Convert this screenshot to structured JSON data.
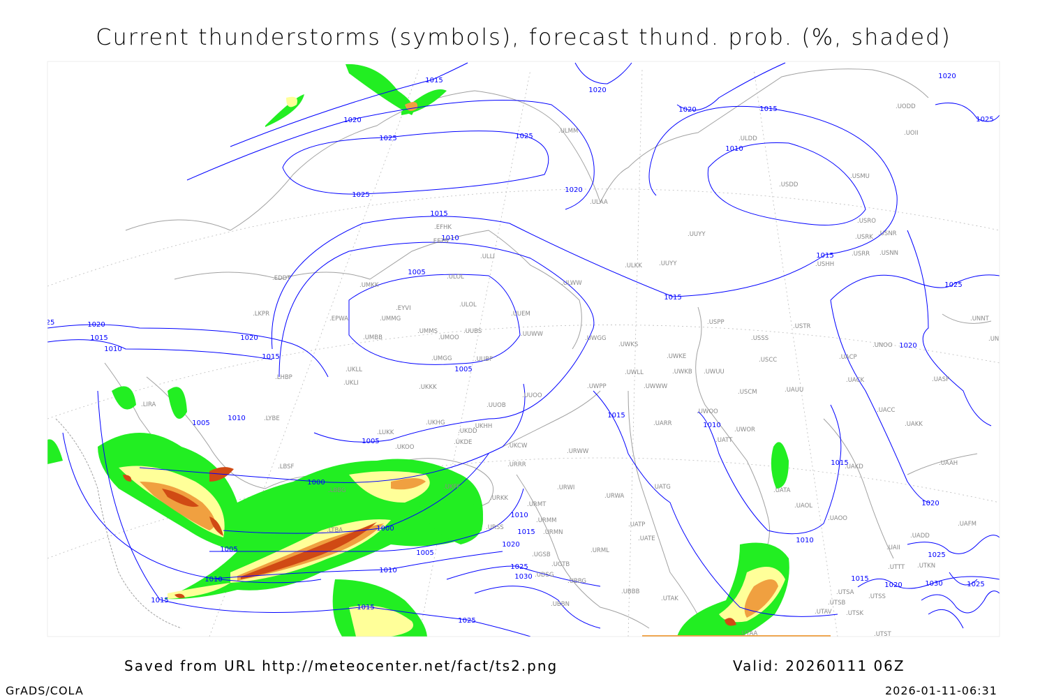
{
  "title": "Current thunderstorms (symbols), forecast thund. prob. (%, shaded)",
  "footer": {
    "saved_from": "Saved from URL http://meteocenter.net/fact/ts2.png",
    "valid": "Valid: 20260111 06Z",
    "software": "GrADS/COLA",
    "timestamp": "2026-01-11-06:31"
  },
  "colors": {
    "isobar": "#0000ff",
    "coastline": "#a0a0a0",
    "prob_low": "#22ee22",
    "prob_mid": "#ffff99",
    "prob_high": "#f0a040",
    "prob_max": "#d04a14"
  },
  "isobar_labels": [
    "1015",
    "1020",
    "1025",
    "1025",
    "1020",
    "1020",
    "1015",
    "1010",
    "1025",
    "1020",
    "1015",
    "1010",
    "1005",
    "1015",
    "1015",
    "1020",
    "1025",
    "1025",
    "1020",
    "1020",
    "1015",
    "1010",
    "1020",
    "1015",
    "1005",
    "1010",
    "1005",
    "1005",
    "1015",
    "1010",
    "1015",
    "1020",
    "1000",
    "1000",
    "1005",
    "1010",
    "1005",
    "1010",
    "1015",
    "1015",
    "1025",
    "1010",
    "1015",
    "1020",
    "1025",
    "1030",
    "1010",
    "1015",
    "1020",
    "1030",
    "1025",
    "1025",
    "25"
  ],
  "stations": [
    "ULMM",
    "ULAA",
    "EFHK",
    "EETN",
    "ULLI",
    "ULOL",
    "ULOL",
    "EDDT",
    "UMKK",
    "EYVI",
    "EPWA",
    "UMMG",
    "LKPR",
    "UMMS",
    "UMOO",
    "UUBS",
    "UMBB",
    "UUEM",
    "UUWW",
    "UMGG",
    "UUBP",
    "UKLL",
    "UKLI",
    "UKKK",
    "LHBP",
    "LIRA",
    "LYBE",
    "UUOO",
    "UUOB",
    "UKHH",
    "UKDD",
    "UKHG",
    "LUKK",
    "UKDE",
    "UKOO",
    "UKCW",
    "URRR",
    "LBSF",
    "LBBG",
    "UKFF",
    "URKK",
    "LTBA",
    "URSS",
    "UGSB",
    "UGTB",
    "UDSG",
    "UBBG",
    "UBBN",
    "UBBB",
    "URMT",
    "URMM",
    "URMN",
    "URWI",
    "URWW",
    "URWA",
    "UATG",
    "UATE",
    "UATP",
    "URML",
    "UTAK",
    "UARR",
    "UWGG",
    "UWKS",
    "UWKE",
    "UWKB",
    "UWUU",
    "UWLL",
    "UWWW",
    "UWPP",
    "UWOO",
    "UWOR",
    "UATT",
    "USPP",
    "USSS",
    "USTR",
    "USCC",
    "USCM",
    "UAUU",
    "UACP",
    "UACK",
    "UASP",
    "UACC",
    "UAKK",
    "UAKD",
    "UAAH",
    "UATA",
    "UAOL",
    "UAOO",
    "UAII",
    "UADD",
    "UAFM",
    "UTKN",
    "UTSB",
    "UTSA",
    "UTSS",
    "UTAV",
    "UTSK",
    "UTST",
    "UTAA",
    "UTTT",
    "UNOO",
    "UNBB",
    "UNNT",
    "USRR",
    "USNN",
    "USHH",
    "USRK",
    "USNR",
    "USRO",
    "USMU",
    "USDD",
    "UUYY",
    "ULDD",
    "ULWW",
    "ULKK",
    "UUYY",
    "UODD",
    "UOII"
  ]
}
